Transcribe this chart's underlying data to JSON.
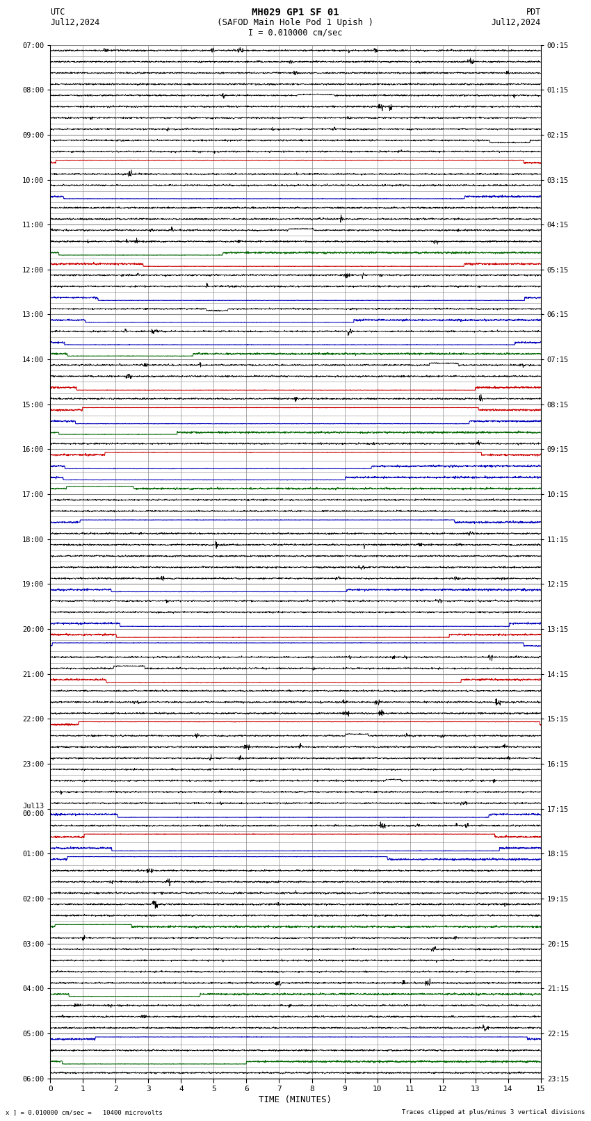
{
  "title_line1": "MH029 GP1 SF 01",
  "title_line2": "(SAFOD Main Hole Pod 1 Upish )",
  "scale_text": "I = 0.010000 cm/sec",
  "utc_label": "UTC",
  "utc_date": "Jul12,2024",
  "pdt_label": "PDT",
  "pdt_date": "Jul12,2024",
  "xlabel": "TIME (MINUTES)",
  "bottom_left": "x ] = 0.010000 cm/sec =   10400 microvolts",
  "bottom_right": "Traces clipped at plus/minus 3 vertical divisions",
  "xmin": 0,
  "xmax": 15,
  "xticks": [
    0,
    1,
    2,
    3,
    4,
    5,
    6,
    7,
    8,
    9,
    10,
    11,
    12,
    13,
    14,
    15
  ],
  "n_rows": 92,
  "background": "#ffffff",
  "grid_color": "#888888",
  "trace_colors": {
    "black": "#000000",
    "red": "#cc0000",
    "blue": "#0000bb",
    "green": "#006600"
  },
  "utc_times_dict": {
    "0": "07:00",
    "4": "08:00",
    "8": "09:00",
    "12": "10:00",
    "16": "11:00",
    "20": "12:00",
    "24": "13:00",
    "28": "14:00",
    "32": "15:00",
    "36": "16:00",
    "40": "17:00",
    "44": "18:00",
    "48": "19:00",
    "52": "20:00",
    "56": "21:00",
    "60": "22:00",
    "64": "23:00",
    "68": "Jul13\n00:00",
    "72": "01:00",
    "76": "02:00",
    "80": "03:00",
    "84": "04:00",
    "88": "05:00",
    "92": "06:00"
  },
  "pdt_times_dict": {
    "0": "00:15",
    "4": "01:15",
    "8": "02:15",
    "12": "03:15",
    "16": "04:15",
    "20": "05:15",
    "24": "06:15",
    "28": "07:15",
    "32": "08:15",
    "36": "09:15",
    "40": "10:15",
    "44": "11:15",
    "48": "12:15",
    "52": "13:15",
    "56": "14:15",
    "60": "15:15",
    "64": "16:15",
    "68": "17:15",
    "72": "18:15",
    "76": "19:15",
    "80": "20:15",
    "84": "21:15",
    "88": "22:15",
    "92": "23:15"
  },
  "colored_rows": {
    "10": "red",
    "13": "blue",
    "18": "green",
    "19": "red",
    "22": "blue",
    "24": "blue",
    "26": "blue",
    "27": "green",
    "30": "red",
    "32": "red",
    "33": "blue",
    "34": "green",
    "36": "red",
    "37": "blue",
    "38": "blue",
    "39": "green",
    "42": "blue",
    "48": "blue",
    "51": "blue",
    "52": "red",
    "53": "blue",
    "56": "red",
    "60": "red",
    "68": "blue",
    "70": "red",
    "71": "blue",
    "72": "blue",
    "78": "green",
    "84": "green",
    "88": "blue",
    "90": "green"
  }
}
